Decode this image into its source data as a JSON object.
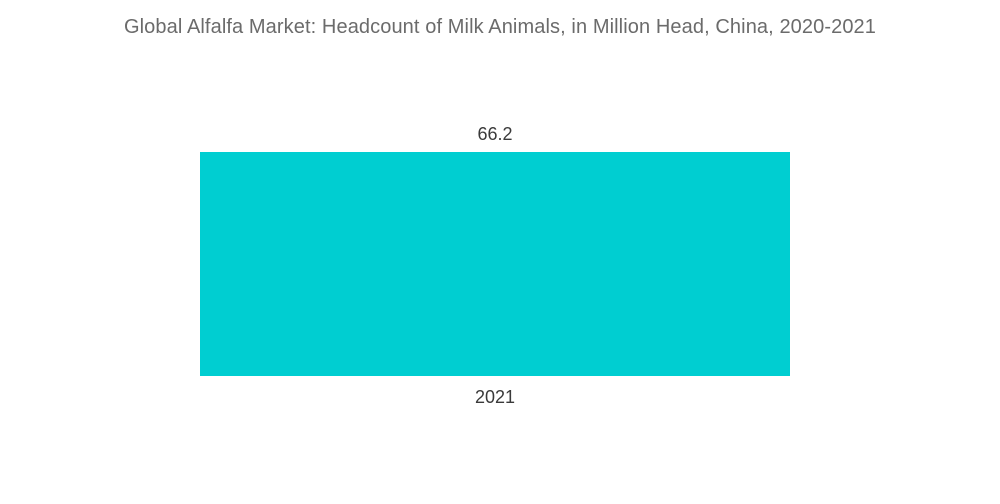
{
  "chart_data": {
    "type": "bar",
    "title": "Global Alfalfa Market: Headcount of Milk Animals, in Million Head, China, 2020-2021",
    "categories": [
      "2021"
    ],
    "values": [
      66.2
    ],
    "data_labels": [
      "66.2"
    ],
    "xlabel": "",
    "ylabel": "",
    "ylim": [
      0,
      66.2
    ],
    "grid": false,
    "legend": "none",
    "bar_color": "#00ced1"
  }
}
